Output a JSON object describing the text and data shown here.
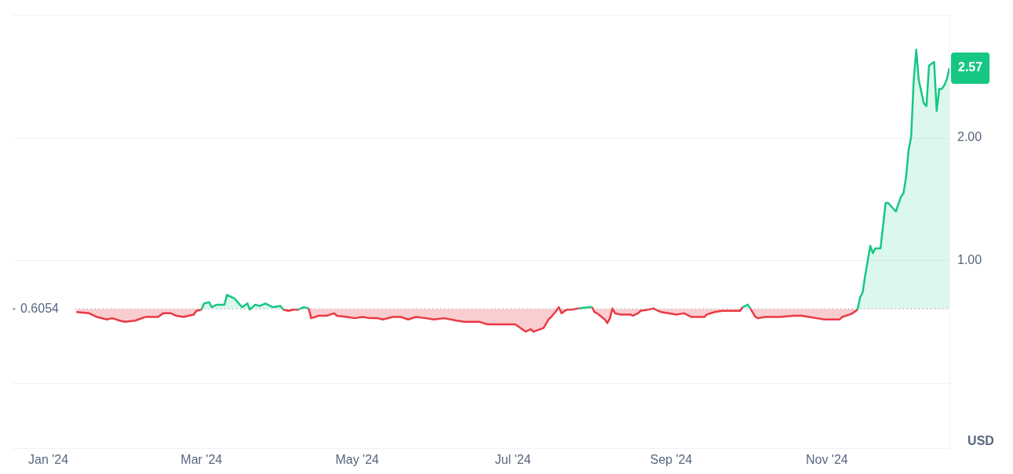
{
  "chart_data": {
    "type": "area",
    "ylabel": "USD",
    "x": [
      "2024-01-12",
      "2024-01-17",
      "2024-01-20",
      "2024-01-24",
      "2024-01-26",
      "2024-01-29",
      "2024-01-31",
      "2024-02-04",
      "2024-02-08",
      "2024-02-13",
      "2024-02-15",
      "2024-02-18",
      "2024-02-20",
      "2024-02-23",
      "2024-02-27",
      "2024-02-28",
      "2024-03-01",
      "2024-03-02",
      "2024-03-04",
      "2024-03-05",
      "2024-03-07",
      "2024-03-10",
      "2024-03-11",
      "2024-03-14",
      "2024-03-16",
      "2024-03-17",
      "2024-03-19",
      "2024-03-20",
      "2024-03-22",
      "2024-03-24",
      "2024-03-26",
      "2024-03-29",
      "2024-04-01",
      "2024-04-02",
      "2024-04-04",
      "2024-04-06",
      "2024-04-08",
      "2024-04-10",
      "2024-04-12",
      "2024-04-13",
      "2024-04-16",
      "2024-04-19",
      "2024-04-22",
      "2024-04-23",
      "2024-04-27",
      "2024-04-30",
      "2024-05-03",
      "2024-05-06",
      "2024-05-09",
      "2024-05-11",
      "2024-05-15",
      "2024-05-18",
      "2024-05-21",
      "2024-05-24",
      "2024-05-28",
      "2024-05-31",
      "2024-06-04",
      "2024-06-09",
      "2024-06-12",
      "2024-06-14",
      "2024-06-18",
      "2024-06-21",
      "2024-06-27",
      "2024-07-02",
      "2024-07-04",
      "2024-07-06",
      "2024-07-08",
      "2024-07-09",
      "2024-07-13",
      "2024-07-15",
      "2024-07-16",
      "2024-07-18",
      "2024-07-19",
      "2024-07-20",
      "2024-07-22",
      "2024-07-24",
      "2024-07-27",
      "2024-07-31",
      "2024-08-01",
      "2024-08-02",
      "2024-08-03",
      "2024-08-06",
      "2024-08-07",
      "2024-08-08",
      "2024-08-09",
      "2024-08-10",
      "2024-08-12",
      "2024-08-16",
      "2024-08-17",
      "2024-08-19",
      "2024-08-20",
      "2024-08-23",
      "2024-08-25",
      "2024-08-28",
      "2024-09-03",
      "2024-09-06",
      "2024-09-09",
      "2024-09-14",
      "2024-09-15",
      "2024-09-18",
      "2024-09-21",
      "2024-09-24",
      "2024-09-28",
      "2024-09-29",
      "2024-10-01",
      "2024-10-02",
      "2024-10-04",
      "2024-10-05",
      "2024-10-08",
      "2024-10-11",
      "2024-10-14",
      "2024-10-19",
      "2024-10-22",
      "2024-10-25",
      "2024-10-28",
      "2024-10-31",
      "2024-11-03",
      "2024-11-06",
      "2024-11-07",
      "2024-11-10",
      "2024-11-11",
      "2024-11-13",
      "2024-11-14",
      "2024-11-15",
      "2024-11-16",
      "2024-11-18",
      "2024-11-19",
      "2024-11-20",
      "2024-11-22",
      "2024-11-24",
      "2024-11-25",
      "2024-11-28",
      "2024-11-30",
      "2024-12-01",
      "2024-12-02",
      "2024-12-03",
      "2024-12-04",
      "2024-12-05",
      "2024-12-06",
      "2024-12-07",
      "2024-12-09",
      "2024-12-10",
      "2024-12-11",
      "2024-12-13",
      "2024-12-14",
      "2024-12-15",
      "2024-12-16",
      "2024-12-17",
      "2024-12-18",
      "2024-12-19"
    ],
    "series": [
      {
        "color": "#16c784",
        "values": [
          0.58,
          0.57,
          0.54,
          0.52,
          0.53,
          0.51,
          0.5,
          0.51,
          0.54,
          0.54,
          0.57,
          0.57,
          0.55,
          0.54,
          0.56,
          0.59,
          0.6,
          0.65,
          0.66,
          0.62,
          0.64,
          0.64,
          0.72,
          0.69,
          0.64,
          0.62,
          0.65,
          0.6,
          0.64,
          0.63,
          0.65,
          0.62,
          0.63,
          0.6,
          0.59,
          0.6,
          0.6,
          0.62,
          0.61,
          0.53,
          0.55,
          0.55,
          0.57,
          0.55,
          0.54,
          0.53,
          0.54,
          0.53,
          0.53,
          0.52,
          0.54,
          0.54,
          0.52,
          0.54,
          0.53,
          0.52,
          0.53,
          0.51,
          0.5,
          0.5,
          0.5,
          0.48,
          0.48,
          0.48,
          0.45,
          0.42,
          0.44,
          0.42,
          0.45,
          0.52,
          0.54,
          0.59,
          0.62,
          0.57,
          0.6,
          0.6,
          0.61,
          0.62,
          0.62,
          0.58,
          0.57,
          0.52,
          0.49,
          0.53,
          0.61,
          0.57,
          0.56,
          0.56,
          0.55,
          0.57,
          0.59,
          0.6,
          0.61,
          0.58,
          0.56,
          0.57,
          0.54,
          0.54,
          0.56,
          0.58,
          0.59,
          0.59,
          0.59,
          0.62,
          0.64,
          0.61,
          0.54,
          0.53,
          0.54,
          0.54,
          0.54,
          0.55,
          0.55,
          0.54,
          0.53,
          0.52,
          0.52,
          0.52,
          0.54,
          0.56,
          0.57,
          0.6,
          0.7,
          0.74,
          0.88,
          1.12,
          1.06,
          1.1,
          1.1,
          1.47,
          1.47,
          1.4,
          1.52,
          1.55,
          1.68,
          1.9,
          2.01,
          2.47,
          2.72,
          2.47,
          2.28,
          2.26,
          2.59,
          2.62,
          2.22,
          2.4,
          2.4,
          2.43,
          2.48,
          2.57
        ],
        "colors": [
          "#ea3943",
          "#ea3943",
          "#ea3943",
          "#ea3943",
          "#ea3943",
          "#ea3943",
          "#ea3943",
          "#ea3943",
          "#ea3943",
          "#ea3943",
          "#ea3943",
          "#ea3943",
          "#ea3943",
          "#ea3943",
          "#ea3943",
          "#ea3943",
          "#ea3943",
          "#16c784",
          "#16c784",
          "#16c784",
          "#16c784",
          "#16c784",
          "#16c784",
          "#16c784",
          "#16c784",
          "#16c784",
          "#16c784",
          "#ea3943",
          "#16c784",
          "#16c784",
          "#16c784",
          "#16c784",
          "#16c784",
          "#ea3943",
          "#ea3943",
          "#ea3943",
          "#ea3943",
          "#16c784",
          "#16c784",
          "#ea3943",
          "#ea3943",
          "#ea3943",
          "#ea3943",
          "#ea3943",
          "#ea3943",
          "#ea3943",
          "#ea3943",
          "#ea3943",
          "#ea3943",
          "#ea3943",
          "#ea3943",
          "#ea3943",
          "#ea3943",
          "#ea3943",
          "#ea3943",
          "#ea3943",
          "#ea3943",
          "#ea3943",
          "#ea3943",
          "#ea3943",
          "#ea3943",
          "#ea3943",
          "#ea3943",
          "#ea3943",
          "#ea3943",
          "#ea3943",
          "#ea3943",
          "#ea3943",
          "#ea3943",
          "#ea3943",
          "#ea3943",
          "#ea3943",
          "#16c784",
          "#ea3943",
          "#ea3943",
          "#ea3943",
          "#16c784",
          "#16c784",
          "#16c784",
          "#ea3943",
          "#ea3943",
          "#ea3943",
          "#ea3943",
          "#ea3943",
          "#16c784",
          "#ea3943",
          "#ea3943",
          "#ea3943",
          "#ea3943",
          "#ea3943",
          "#ea3943",
          "#ea3943",
          "#16c784",
          "#ea3943",
          "#ea3943",
          "#ea3943",
          "#ea3943",
          "#ea3943",
          "#ea3943",
          "#ea3943",
          "#ea3943",
          "#ea3943",
          "#ea3943",
          "#16c784",
          "#16c784",
          "#16c784",
          "#ea3943",
          "#ea3943",
          "#ea3943",
          "#ea3943",
          "#ea3943",
          "#ea3943",
          "#ea3943",
          "#ea3943",
          "#ea3943",
          "#ea3943",
          "#ea3943",
          "#ea3943",
          "#ea3943",
          "#ea3943",
          "#ea3943",
          "#ea3943",
          "#16c784",
          "#16c784",
          "#16c784",
          "#16c784",
          "#16c784",
          "#16c784",
          "#16c784",
          "#16c784",
          "#16c784",
          "#16c784",
          "#16c784",
          "#16c784",
          "#16c784",
          "#16c784",
          "#16c784",
          "#16c784",
          "#16c784",
          "#16c784",
          "#16c784",
          "#16c784",
          "#16c784",
          "#16c784",
          "#16c784",
          "#16c784",
          "#16c784",
          "#16c784",
          "#16c784",
          "#16c784"
        ]
      }
    ],
    "xlim": [
      "2023-12-18",
      "2024-12-19"
    ],
    "xticks": [
      {
        "value": "2024-01-01",
        "label": "Jan '24"
      },
      {
        "value": "2024-03-01",
        "label": "Mar '24"
      },
      {
        "value": "2024-05-01",
        "label": "May '24"
      },
      {
        "value": "2024-07-01",
        "label": "Jul '24"
      },
      {
        "value": "2024-09-01",
        "label": "Sep '24"
      },
      {
        "value": "2024-11-01",
        "label": "Nov '24"
      }
    ],
    "ylim": [
      -0.53,
      3.0
    ],
    "yticks": [
      {
        "value": 0,
        "label": null
      },
      {
        "value": 1,
        "label": "1.00"
      },
      {
        "value": 2,
        "label": "2.00"
      },
      {
        "value": 3,
        "label": null
      }
    ],
    "grid": "y",
    "legend": false,
    "marker": "none",
    "line_style": "solid",
    "ref_lines": [
      {
        "axis": "y",
        "value": 0.6054,
        "label": "0.6054",
        "color": "#a0a7b4",
        "line_style": "dotted"
      }
    ],
    "annotations": [
      {
        "text": "2.57",
        "x": "2024-12-19",
        "y": 2.57
      }
    ]
  }
}
